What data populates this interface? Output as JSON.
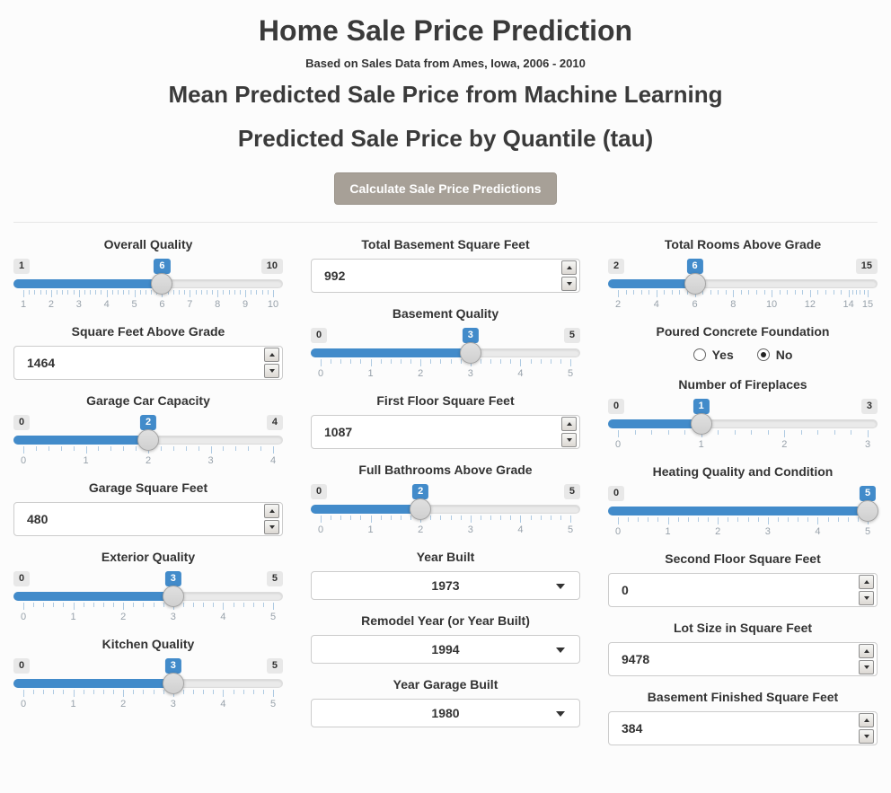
{
  "header": {
    "title": "Home Sale Price Prediction",
    "subtitle": "Based on Sales Data from Ames, Iowa, 2006 - 2010",
    "heading_mean": "Mean Predicted Sale Price from Machine Learning",
    "heading_quantile": "Predicted Sale Price by Quantile (tau)",
    "button_label": "Calculate Sale Price Predictions"
  },
  "colors": {
    "accent_blue": "#428bca",
    "button_gray": "#a7a097",
    "track_gray": "#eaeaea"
  },
  "columns": [
    {
      "controls": [
        {
          "type": "slider",
          "id": "overall-quality",
          "label": "Overall Quality",
          "min": 1,
          "max": 10,
          "value": 6,
          "ticks": [
            1,
            2,
            3,
            4,
            5,
            6,
            7,
            8,
            9,
            10
          ]
        },
        {
          "type": "number",
          "id": "sqft-above-grade",
          "label": "Square Feet Above Grade",
          "value": "1464"
        },
        {
          "type": "slider",
          "id": "garage-car-capacity",
          "label": "Garage Car Capacity",
          "min": 0,
          "max": 4,
          "value": 2,
          "ticks": [
            0,
            1,
            2,
            3,
            4
          ]
        },
        {
          "type": "number",
          "id": "garage-sqft",
          "label": "Garage Square Feet",
          "value": "480"
        },
        {
          "type": "slider",
          "id": "exterior-quality",
          "label": "Exterior Quality",
          "min": 0,
          "max": 5,
          "value": 3,
          "ticks": [
            0,
            1,
            2,
            3,
            4,
            5
          ]
        },
        {
          "type": "slider",
          "id": "kitchen-quality",
          "label": "Kitchen Quality",
          "min": 0,
          "max": 5,
          "value": 3,
          "ticks": [
            0,
            1,
            2,
            3,
            4,
            5
          ]
        }
      ]
    },
    {
      "controls": [
        {
          "type": "number",
          "id": "total-basement-sqft",
          "label": "Total Basement Square Feet",
          "value": "992"
        },
        {
          "type": "slider",
          "id": "basement-quality",
          "label": "Basement Quality",
          "min": 0,
          "max": 5,
          "value": 3,
          "ticks": [
            0,
            1,
            2,
            3,
            4,
            5
          ]
        },
        {
          "type": "number",
          "id": "first-floor-sqft",
          "label": "First Floor Square Feet",
          "value": "1087"
        },
        {
          "type": "slider",
          "id": "full-bathrooms-above-grade",
          "label": "Full Bathrooms Above Grade",
          "min": 0,
          "max": 5,
          "value": 2,
          "ticks": [
            0,
            1,
            2,
            3,
            4,
            5
          ]
        },
        {
          "type": "select",
          "id": "year-built",
          "label": "Year Built",
          "value": "1973"
        },
        {
          "type": "select",
          "id": "remodel-year",
          "label": "Remodel Year (or Year Built)",
          "value": "1994"
        },
        {
          "type": "select",
          "id": "year-garage-built",
          "label": "Year Garage Built",
          "value": "1980"
        }
      ]
    },
    {
      "controls": [
        {
          "type": "slider",
          "id": "total-rooms-above-grade",
          "label": "Total Rooms Above Grade",
          "min": 2,
          "max": 15,
          "value": 6,
          "ticks": [
            2,
            4,
            6,
            8,
            10,
            12,
            14,
            15
          ]
        },
        {
          "type": "radio",
          "id": "poured-concrete-foundation",
          "label": "Poured Concrete Foundation",
          "options": [
            "Yes",
            "No"
          ],
          "selected": "No"
        },
        {
          "type": "slider",
          "id": "number-of-fireplaces",
          "label": "Number of Fireplaces",
          "min": 0,
          "max": 3,
          "value": 1,
          "ticks": [
            0,
            1,
            2,
            3
          ]
        },
        {
          "type": "slider",
          "id": "heating-quality-and-condition",
          "label": "Heating Quality and Condition",
          "min": 0,
          "max": 5,
          "value": 5,
          "ticks": [
            0,
            1,
            2,
            3,
            4,
            5
          ]
        },
        {
          "type": "number",
          "id": "second-floor-sqft",
          "label": "Second Floor Square Feet",
          "value": "0"
        },
        {
          "type": "number",
          "id": "lot-size-sqft",
          "label": "Lot Size in Square Feet",
          "value": "9478"
        },
        {
          "type": "number",
          "id": "basement-finished-sqft",
          "label": "Basement Finished Square Feet",
          "value": "384"
        }
      ]
    }
  ]
}
